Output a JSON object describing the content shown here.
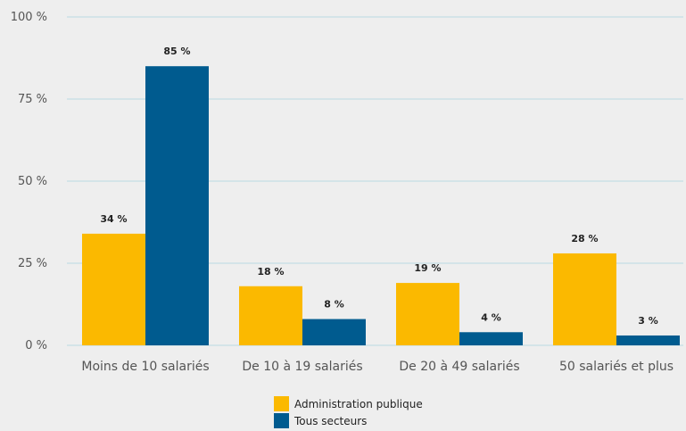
{
  "chart_data": {
    "type": "bar",
    "categories": [
      "Moins de 10 salariés",
      "De 10 à 19 salariés",
      "De 20 à 49 salariés",
      "50 salariés et plus"
    ],
    "series": [
      {
        "name": "Administration publique",
        "values": [
          34,
          18,
          19,
          28
        ],
        "labels": [
          "34 %",
          "18 %",
          "19 %",
          "28 %"
        ],
        "color": "#fbb900"
      },
      {
        "name": "Tous secteurs",
        "values": [
          85,
          8,
          4,
          3
        ],
        "labels": [
          "85 %",
          "8 %",
          "4 %",
          "3 %"
        ],
        "color": "#005b8f"
      }
    ],
    "yticks": [
      {
        "value": 0,
        "label": "0 %"
      },
      {
        "value": 25,
        "label": "25 %"
      },
      {
        "value": 50,
        "label": "50 %"
      },
      {
        "value": 75,
        "label": "75 %"
      },
      {
        "value": 100,
        "label": "100 %"
      }
    ],
    "ylim": [
      0,
      100
    ],
    "grid": true,
    "legend_position": "bottom-center",
    "title": "",
    "xlabel": "",
    "ylabel": ""
  },
  "colors": {
    "background": "#eeeeee",
    "grid": "#b9dbe3"
  }
}
